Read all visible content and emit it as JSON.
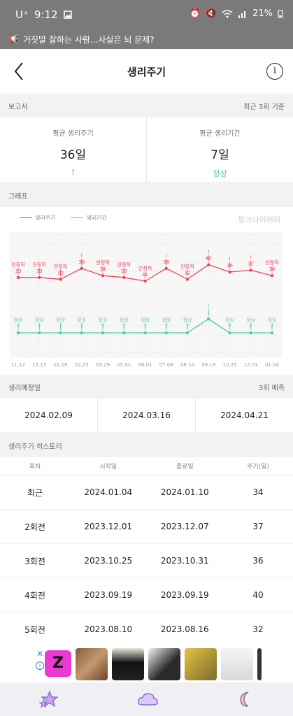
{
  "statusbar": {
    "carrier": "U⁺",
    "time": "9:12",
    "battery": "21%"
  },
  "notice": {
    "text": "거짓말 잘하는 사람...사실은 뇌 문제?"
  },
  "header": {
    "title": "생리주기",
    "info_label": "i"
  },
  "report": {
    "section_title": "보고서",
    "section_note": "최근 3회 기준",
    "cycle": {
      "label": "평균 생리주기",
      "value": "36일",
      "status": "!"
    },
    "period": {
      "label": "평균 생리기간",
      "value": "7일",
      "status": "정상"
    }
  },
  "graph": {
    "section_title": "그래프",
    "brand": "핑크다이어리",
    "legend": {
      "cycle": "생리주기",
      "period": "생리기간"
    }
  },
  "chart_data": {
    "type": "line",
    "x": [
      "11.12",
      "12.15",
      "01.16",
      "02.23",
      "03.29",
      "05.01",
      "06.01",
      "07.09",
      "08.10",
      "09.19",
      "10.25",
      "12.01",
      "01.04"
    ],
    "series": [
      {
        "name": "생리주기",
        "values": [
          33,
          33,
          32,
          38,
          34,
          33,
          31,
          38,
          32,
          40,
          36,
          37,
          34
        ],
        "labels": [
          "안정적",
          "안정적",
          "안정적",
          "!",
          "안정적",
          "안정적",
          "안정적",
          "!",
          "안정적",
          "!",
          "!",
          "!",
          "안정적"
        ]
      },
      {
        "name": "생리기간",
        "values": [
          7,
          7,
          7,
          7,
          7,
          7,
          7,
          7,
          7,
          1,
          7,
          7,
          7
        ],
        "labels": [
          "정상",
          "정상",
          "정상",
          "정상",
          "정상",
          "정상",
          "정상",
          "정상",
          "정상",
          "!",
          "정상",
          "정상",
          "정상"
        ]
      }
    ],
    "colors": {
      "cycle": "#e8485a",
      "period": "#4ec9a8"
    }
  },
  "prediction": {
    "section_title": "생리예정일",
    "section_note": "3회 예측",
    "dates": [
      "2024.02.09",
      "2024.03.16",
      "2024.04.21"
    ]
  },
  "history": {
    "section_title": "생리주기 히스토리",
    "columns": [
      "회차",
      "시작일",
      "종료일",
      "주기(일)"
    ],
    "rows": [
      [
        "최근",
        "2024.01.04",
        "2024.01.10",
        "34"
      ],
      [
        "2회전",
        "2023.12.01",
        "2023.12.07",
        "37"
      ],
      [
        "3회전",
        "2023.10.25",
        "2023.10.31",
        "36"
      ],
      [
        "4회전",
        "2023.09.19",
        "2023.09.19",
        "40"
      ],
      [
        "5회전",
        "2023.08.10",
        "2023.08.16",
        "32"
      ]
    ]
  },
  "ad": {
    "close": "✕",
    "info": "i",
    "logo": "Z"
  }
}
